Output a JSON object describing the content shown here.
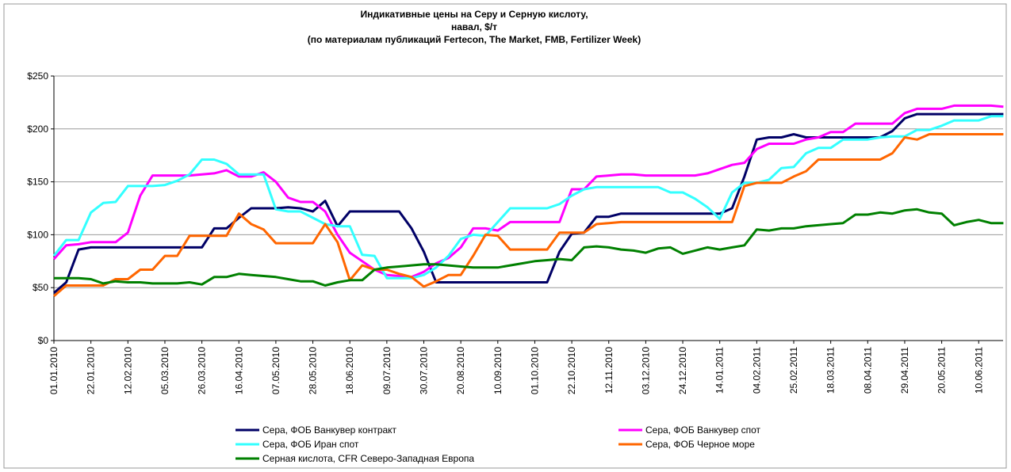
{
  "chart_data": {
    "type": "line",
    "title": [
      "Индикативные цены на Серу и Серную кислоту,",
      "навал, $/т",
      "(по материалам публикаций Fertecon, The Market, FMB, Fertilizer Week)"
    ],
    "categories": [
      "01.01.2010",
      null,
      null,
      "22.01.2010",
      null,
      null,
      "12.02.2010",
      null,
      null,
      "05.03.2010",
      null,
      null,
      "26.03.2010",
      null,
      null,
      "16.04.2010",
      null,
      null,
      "07.05.2010",
      null,
      null,
      "28.05.2010",
      null,
      null,
      "18.06.2010",
      null,
      null,
      "09.07.2010",
      null,
      null,
      "30.07.2010",
      null,
      null,
      "20.08.2010",
      null,
      null,
      "10.09.2010",
      null,
      null,
      "01.10.2010",
      null,
      null,
      "22.10.2010",
      null,
      null,
      "12.11.2010",
      null,
      null,
      "03.12.2010",
      null,
      null,
      "24.12.2010",
      null,
      null,
      "14.01.2011",
      null,
      null,
      "04.02.2011",
      null,
      null,
      "25.02.2011",
      null,
      null,
      "18.03.2011",
      null,
      null,
      "08.04.2011",
      null,
      null,
      "29.04.2011",
      null,
      null,
      "20.05.2011",
      null,
      null,
      "10.06.2011",
      null,
      null
    ],
    "ylim": [
      0,
      250
    ],
    "yticks": [
      {
        "value": 0,
        "label": "$0"
      },
      {
        "value": 50,
        "label": "$50"
      },
      {
        "value": 100,
        "label": "$100"
      },
      {
        "value": 150,
        "label": "$150"
      },
      {
        "value": 200,
        "label": "$200"
      },
      {
        "value": 250,
        "label": "$250"
      }
    ],
    "grid": true,
    "legend": "bottom",
    "series": [
      {
        "name": "Сера, ФОБ Ванкувер контракт",
        "color": "#000066",
        "values": [
          45,
          55,
          86,
          88,
          88,
          88,
          88,
          88,
          88,
          88,
          88,
          88,
          88,
          106,
          106,
          116,
          125,
          125,
          125,
          126,
          125,
          122,
          132,
          108,
          122,
          122,
          122,
          122,
          122,
          106,
          84,
          55,
          55,
          55,
          55,
          55,
          55,
          55,
          55,
          55,
          55,
          84,
          101,
          102,
          117,
          117,
          120,
          120,
          120,
          120,
          120,
          120,
          120,
          120,
          120,
          125,
          155,
          190,
          192,
          192,
          195,
          192,
          192,
          192,
          192,
          192,
          192,
          192,
          198,
          210,
          214,
          214,
          214,
          214,
          214,
          214,
          214,
          214
        ]
      },
      {
        "name": "Сера, ФОБ Ванкувер спот",
        "color": "#ff00ff",
        "values": [
          77,
          90,
          91,
          93,
          93,
          93,
          102,
          137,
          156,
          156,
          156,
          156,
          157,
          158,
          161,
          155,
          155,
          159,
          150,
          135,
          131,
          131,
          122,
          100,
          83,
          75,
          67,
          62,
          61,
          60,
          65,
          73,
          78,
          88,
          106,
          106,
          104,
          112,
          112,
          112,
          112,
          112,
          143,
          143,
          155,
          156,
          157,
          157,
          156,
          156,
          156,
          156,
          156,
          158,
          162,
          166,
          168,
          181,
          186,
          186,
          186,
          190,
          192,
          197,
          197,
          205,
          205,
          205,
          205,
          215,
          219,
          219,
          219,
          222,
          222,
          222,
          222,
          221
        ]
      },
      {
        "name": "Сера, ФОБ Иран спот",
        "color": "#33ffff",
        "values": [
          80,
          95,
          95,
          121,
          130,
          131,
          146,
          146,
          146,
          147,
          151,
          157,
          171,
          171,
          167,
          157,
          157,
          157,
          124,
          122,
          122,
          116,
          110,
          108,
          108,
          81,
          80,
          59,
          59,
          59,
          62,
          69,
          80,
          96,
          100,
          99,
          112,
          125,
          125,
          125,
          125,
          129,
          137,
          143,
          145,
          145,
          145,
          145,
          145,
          145,
          140,
          140,
          134,
          126,
          115,
          140,
          149,
          149,
          152,
          163,
          164,
          177,
          182,
          182,
          190,
          190,
          190,
          192,
          193,
          193,
          199,
          199,
          203,
          208,
          208,
          208,
          212,
          212
        ]
      },
      {
        "name": "Сера, ФОБ Черное море",
        "color": "#ff6600",
        "values": [
          42,
          52,
          52,
          52,
          52,
          58,
          58,
          67,
          67,
          80,
          80,
          99,
          99,
          99,
          99,
          120,
          110,
          105,
          92,
          92,
          92,
          92,
          110,
          93,
          57,
          71,
          67,
          67,
          63,
          60,
          51,
          56,
          62,
          62,
          80,
          100,
          99,
          86,
          86,
          86,
          86,
          102,
          102,
          102,
          110,
          111,
          112,
          112,
          112,
          112,
          112,
          112,
          112,
          112,
          112,
          112,
          146,
          149,
          149,
          149,
          155,
          160,
          171,
          171,
          171,
          171,
          171,
          171,
          177,
          192,
          190,
          195,
          195,
          195,
          195,
          195,
          195,
          195
        ]
      },
      {
        "name": "Серная кислота, CFR Северо-Западная Европа",
        "color": "#008000",
        "values": [
          59,
          59,
          59,
          58,
          54,
          56,
          55,
          55,
          54,
          54,
          54,
          55,
          53,
          60,
          60,
          63,
          62,
          61,
          60,
          58,
          56,
          56,
          52,
          55,
          57,
          57,
          67,
          69,
          70,
          71,
          72,
          72,
          71,
          70,
          69,
          69,
          69,
          71,
          73,
          75,
          76,
          77,
          76,
          88,
          89,
          88,
          86,
          85,
          83,
          87,
          88,
          82,
          85,
          88,
          86,
          88,
          90,
          105,
          104,
          106,
          106,
          108,
          109,
          110,
          111,
          119,
          119,
          121,
          120,
          123,
          124,
          121,
          120,
          109,
          112,
          114,
          111,
          111
        ]
      }
    ]
  }
}
